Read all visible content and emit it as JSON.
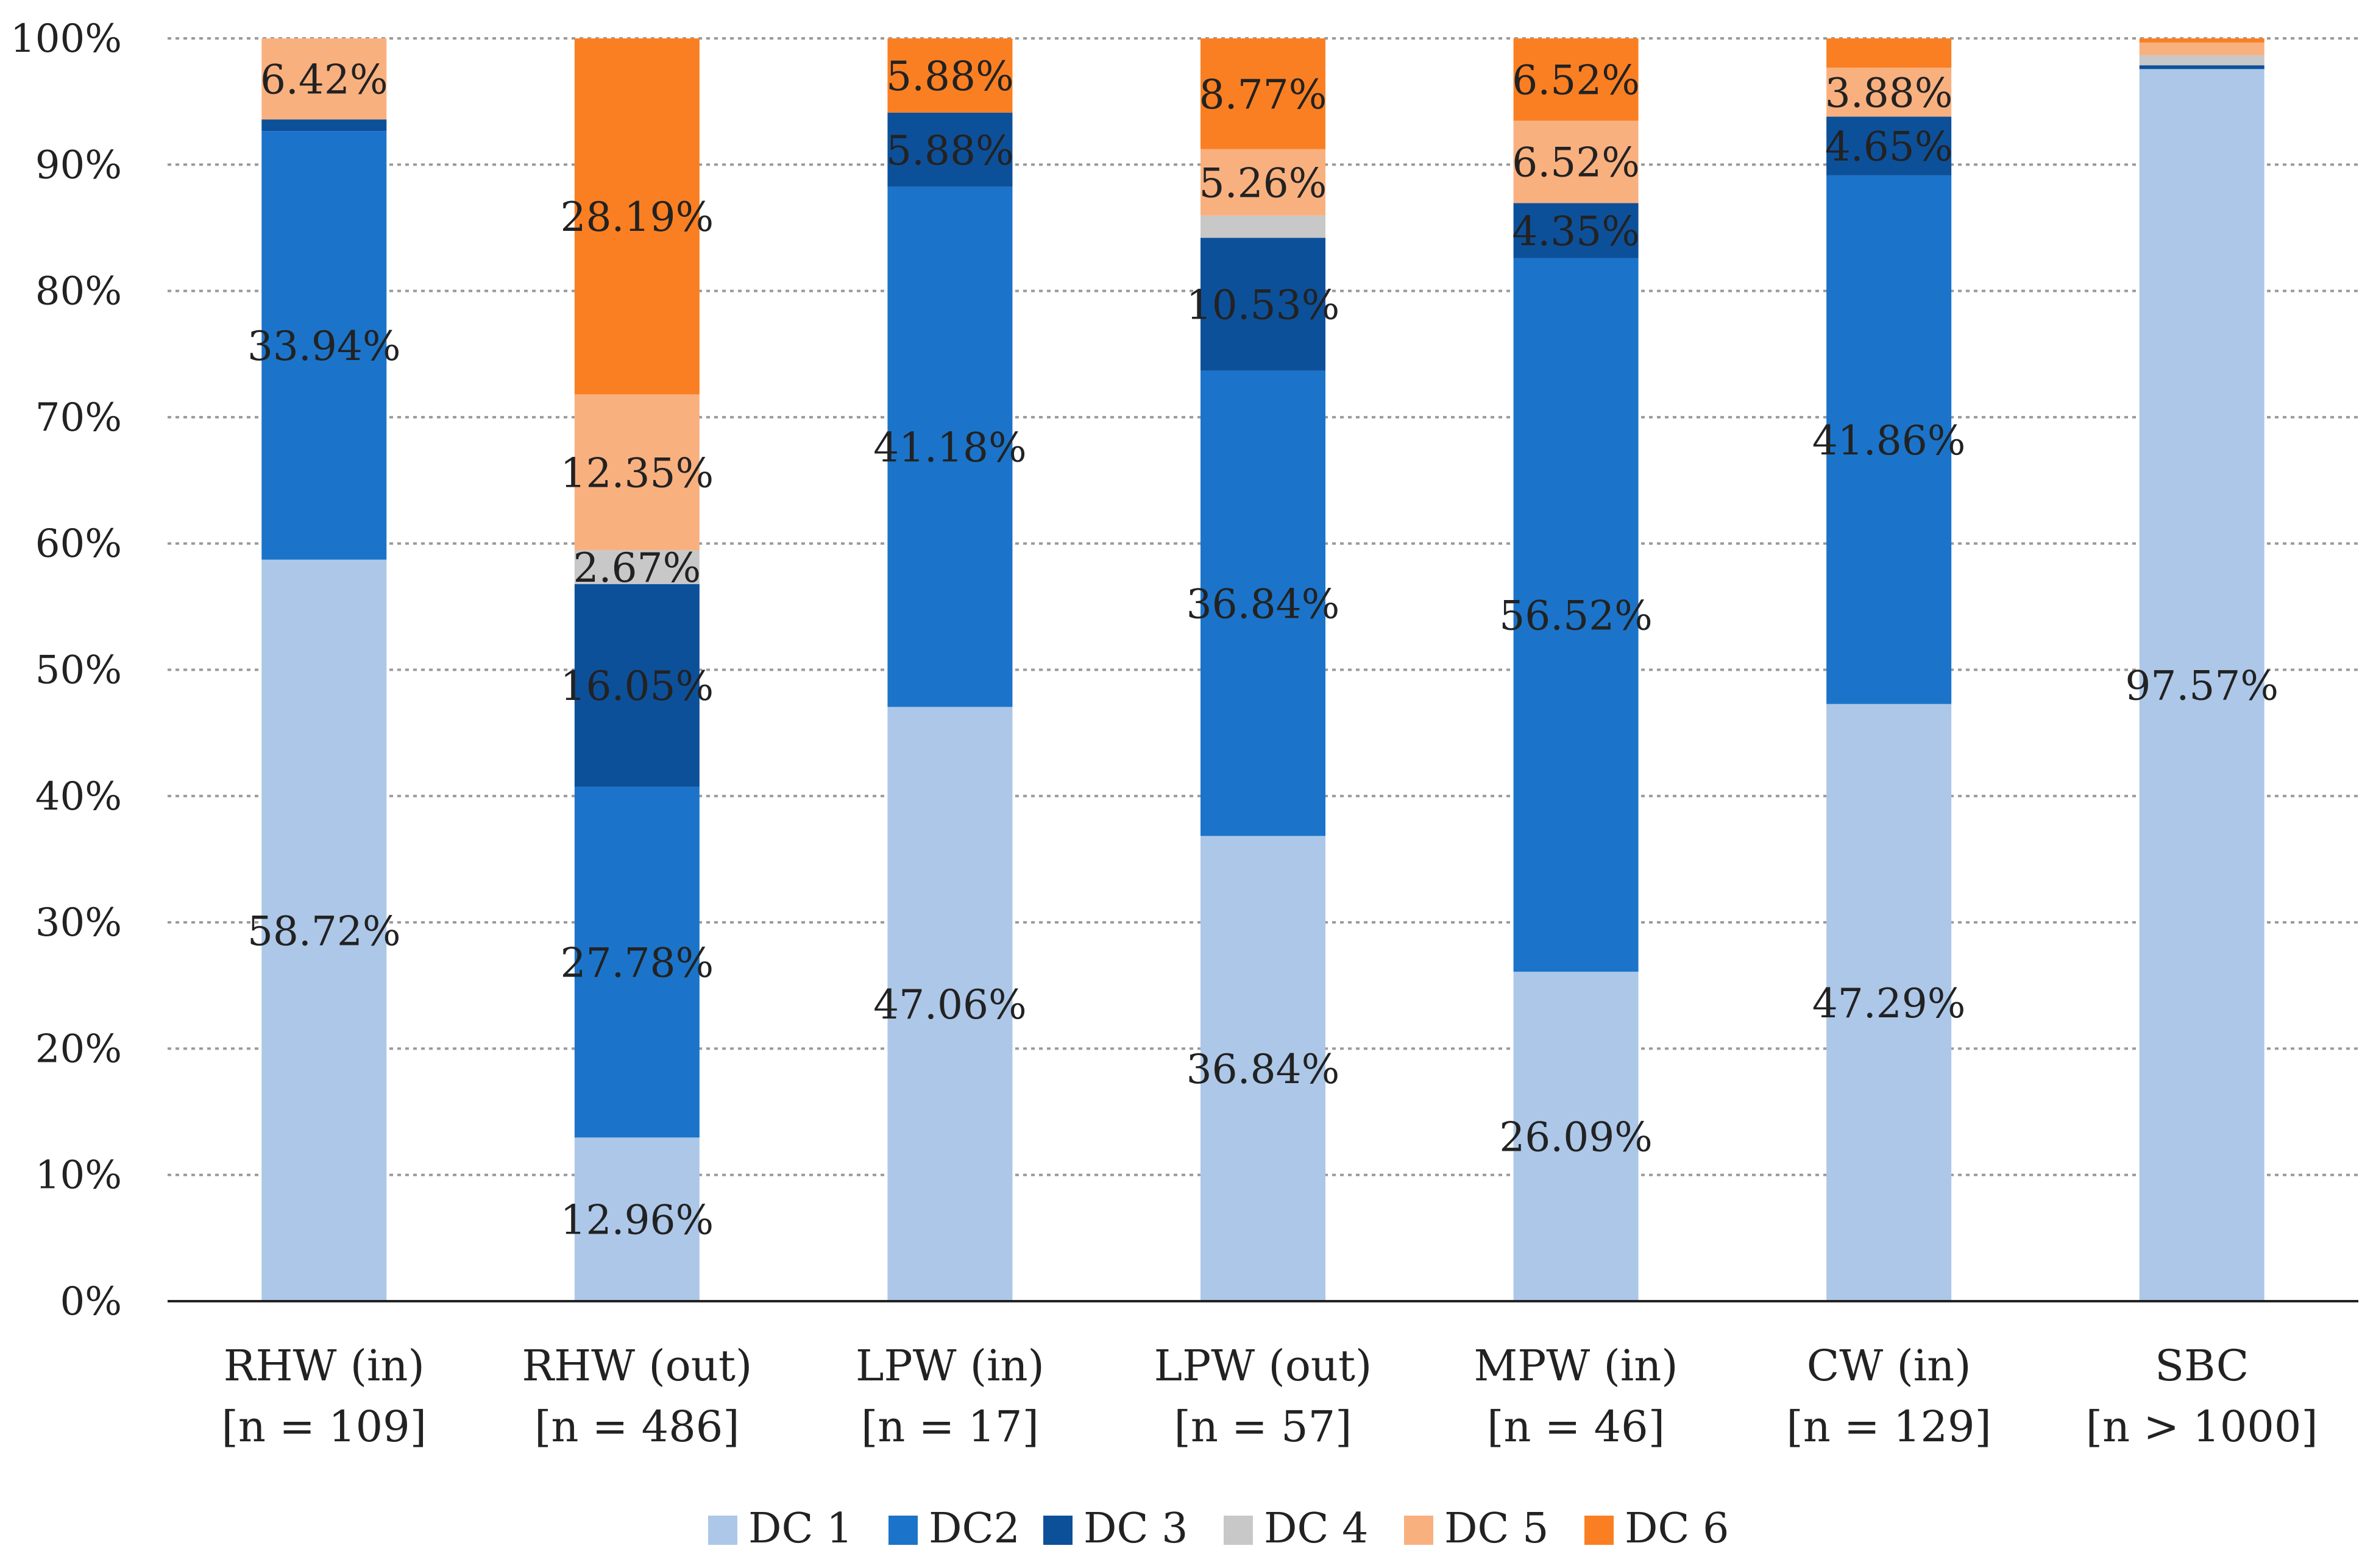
{
  "chart_data": {
    "type": "bar",
    "stacked": true,
    "categories": [
      [
        "RHW (in)",
        "[n = 109]"
      ],
      [
        "RHW (out)",
        "[n = 486]"
      ],
      [
        "LPW (in)",
        "[n = 17]"
      ],
      [
        "LPW (out)",
        "[n = 57]"
      ],
      [
        "MPW (in)",
        "[n = 46]"
      ],
      [
        "CW (in)",
        "[n = 129]"
      ],
      [
        "SBC",
        "[n > 1000]"
      ]
    ],
    "series": [
      {
        "name": "DC 1",
        "color": "#adc7e8",
        "values": [
          58.72,
          12.96,
          47.06,
          36.84,
          26.09,
          47.29,
          97.57
        ]
      },
      {
        "name": "DC2",
        "color": "#1b74c9",
        "values": [
          33.94,
          27.78,
          41.18,
          36.84,
          56.52,
          41.86,
          0.0
        ]
      },
      {
        "name": "DC 3",
        "color": "#0d509a",
        "values": [
          0.92,
          16.05,
          5.88,
          10.53,
          4.35,
          4.65,
          0.3
        ]
      },
      {
        "name": "DC 4",
        "color": "#c8c8c8",
        "values": [
          0.0,
          2.67,
          0.0,
          1.76,
          0.0,
          0.0,
          0.8
        ]
      },
      {
        "name": "DC 5",
        "color": "#f9b07f",
        "values": [
          6.42,
          12.35,
          0.0,
          5.26,
          6.52,
          3.88,
          1.0
        ]
      },
      {
        "name": "DC 6",
        "color": "#fa7f22",
        "values": [
          0.0,
          28.19,
          5.88,
          8.77,
          6.52,
          2.32,
          0.33
        ]
      }
    ],
    "data_labels": [
      [
        {
          "series": 0,
          "text": "58.72%"
        },
        {
          "series": 1,
          "text": "33.94%"
        },
        {
          "series": 4,
          "text": "6.42%"
        }
      ],
      [
        {
          "series": 0,
          "text": "12.96%"
        },
        {
          "series": 1,
          "text": "27.78%"
        },
        {
          "series": 2,
          "text": "16.05%"
        },
        {
          "series": 3,
          "text": "2.67%"
        },
        {
          "series": 4,
          "text": "12.35%"
        },
        {
          "series": 5,
          "text": "28.19%"
        }
      ],
      [
        {
          "series": 0,
          "text": "47.06%"
        },
        {
          "series": 1,
          "text": "41.18%"
        },
        {
          "series": 2,
          "text": "5.88%"
        },
        {
          "series": 5,
          "text": "5.88%"
        }
      ],
      [
        {
          "series": 0,
          "text": "36.84%"
        },
        {
          "series": 1,
          "text": "36.84%"
        },
        {
          "series": 2,
          "text": "10.53%"
        },
        {
          "series": 4,
          "text": "5.26%"
        },
        {
          "series": 5,
          "text": "8.77%"
        }
      ],
      [
        {
          "series": 0,
          "text": "26.09%"
        },
        {
          "series": 1,
          "text": "56.52%"
        },
        {
          "series": 2,
          "text": "4.35%"
        },
        {
          "series": 4,
          "text": "6.52%"
        },
        {
          "series": 5,
          "text": "6.52%"
        }
      ],
      [
        {
          "series": 0,
          "text": "47.29%"
        },
        {
          "series": 1,
          "text": "41.86%"
        },
        {
          "series": 2,
          "text": "4.65%"
        },
        {
          "series": 4,
          "text": "3.88%"
        }
      ],
      [
        {
          "series": 0,
          "text": "97.57%"
        }
      ]
    ],
    "y_ticks": [
      "0%",
      "10%",
      "20%",
      "30%",
      "40%",
      "50%",
      "60%",
      "70%",
      "80%",
      "90%",
      "100%"
    ],
    "ylim": [
      0,
      100
    ],
    "grid": true,
    "legend_position": "bottom",
    "title": "",
    "xlabel": "",
    "ylabel": ""
  }
}
